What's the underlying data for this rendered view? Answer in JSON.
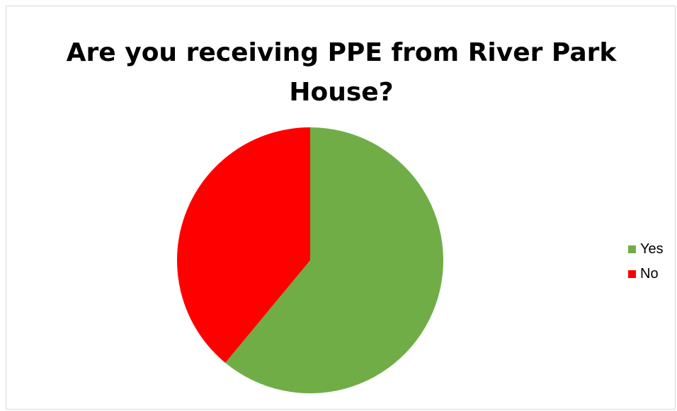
{
  "chart_data": {
    "type": "pie",
    "title": "Are you receiving PPE from River Park House?",
    "slices": [
      {
        "name": "Yes",
        "value": 61,
        "color": "#70ad47"
      },
      {
        "name": "No",
        "value": 39,
        "color": "#ff0000"
      }
    ],
    "legend_position": "right"
  }
}
